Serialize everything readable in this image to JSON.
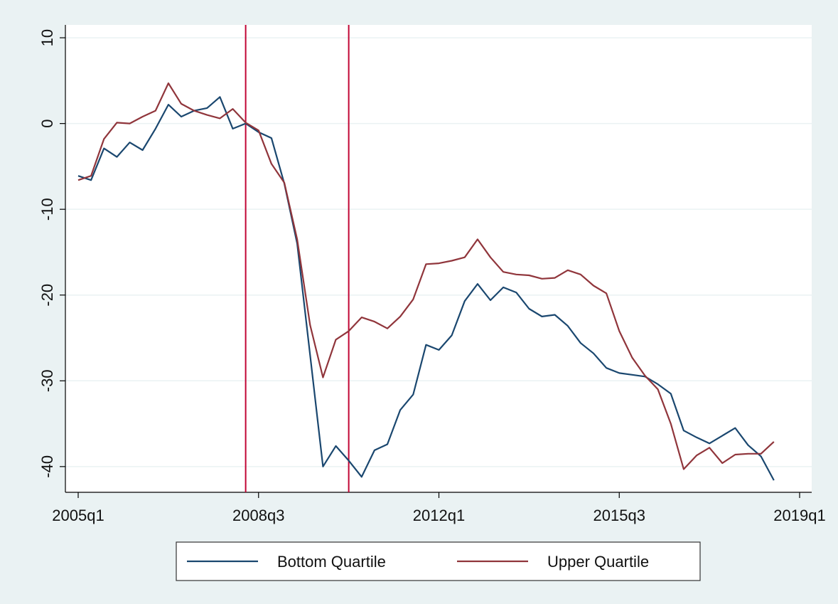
{
  "chart_data": {
    "type": "line",
    "x": [
      "2005q1",
      "2005q2",
      "2005q3",
      "2005q4",
      "2006q1",
      "2006q2",
      "2006q3",
      "2006q4",
      "2007q1",
      "2007q2",
      "2007q3",
      "2007q4",
      "2008q1",
      "2008q2",
      "2008q3",
      "2008q4",
      "2009q1",
      "2009q2",
      "2009q3",
      "2009q4",
      "2010q1",
      "2010q2",
      "2010q3",
      "2010q4",
      "2011q1",
      "2011q2",
      "2011q3",
      "2011q4",
      "2012q1",
      "2012q2",
      "2012q3",
      "2012q4",
      "2013q1",
      "2013q2",
      "2013q3",
      "2013q4",
      "2014q1",
      "2014q2",
      "2014q3",
      "2014q4",
      "2015q1",
      "2015q2",
      "2015q3",
      "2015q4",
      "2016q1",
      "2016q2",
      "2016q3",
      "2016q4",
      "2017q1",
      "2017q2",
      "2017q3",
      "2017q4",
      "2018q1",
      "2018q2",
      "2018q3"
    ],
    "series": [
      {
        "name": "Bottom Quartile",
        "color": "#1a476f",
        "values": [
          -6.1,
          -6.6,
          -2.9,
          -3.9,
          -2.2,
          -3.1,
          -0.6,
          2.2,
          0.8,
          1.5,
          1.8,
          3.1,
          -0.6,
          0,
          -1.0,
          -1.7,
          -7.0,
          -14,
          -27,
          -40,
          -37.6,
          -39.3,
          -41.2,
          -38.1,
          -37.4,
          -33.4,
          -31.6,
          -25.8,
          -26.4,
          -24.7,
          -20.7,
          -18.7,
          -20.6,
          -19.1,
          -19.7,
          -21.6,
          -22.5,
          -22.3,
          -23.6,
          -25.6,
          -26.8,
          -28.5,
          -29.1,
          -29.3,
          -29.5,
          -30.4,
          -31.5,
          -35.8,
          -36.6,
          -37.3,
          -36.4,
          -35.5,
          -37.5,
          -38.8,
          -41.6
        ]
      },
      {
        "name": "Upper Quartile",
        "color": "#90353b",
        "values": [
          -6.6,
          -6.1,
          -1.8,
          0.1,
          0,
          0.8,
          1.5,
          4.7,
          2.3,
          1.5,
          1.0,
          0.6,
          1.7,
          0.1,
          -0.8,
          -4.7,
          -6.9,
          -13.5,
          -23.5,
          -29.6,
          -25.2,
          -24.2,
          -22.6,
          -23.1,
          -23.9,
          -22.5,
          -20.5,
          -16.4,
          -16.3,
          -16,
          -15.6,
          -13.5,
          -15.6,
          -17.3,
          -17.6,
          -17.7,
          -18.1,
          -18.0,
          -17.1,
          -17.6,
          -18.9,
          -19.8,
          -24.2,
          -27.3,
          -29.4,
          -31,
          -35,
          -40.3,
          -38.7,
          -37.8,
          -39.6,
          -38.6,
          -38.5,
          -38.5,
          -37.1
        ]
      }
    ],
    "xlim": [
      "2005q1",
      "2019q1"
    ],
    "xticks": [
      "2005q1",
      "2008q3",
      "2012q1",
      "2015q3",
      "2019q1"
    ],
    "ylim": [
      -43,
      11.5
    ],
    "yticks": [
      10,
      0,
      -10,
      -20,
      -30,
      -40
    ],
    "vlines": [
      "2008q2",
      "2010q2"
    ],
    "vline_color": "#c10534",
    "grid": true,
    "legend": "bottom"
  }
}
